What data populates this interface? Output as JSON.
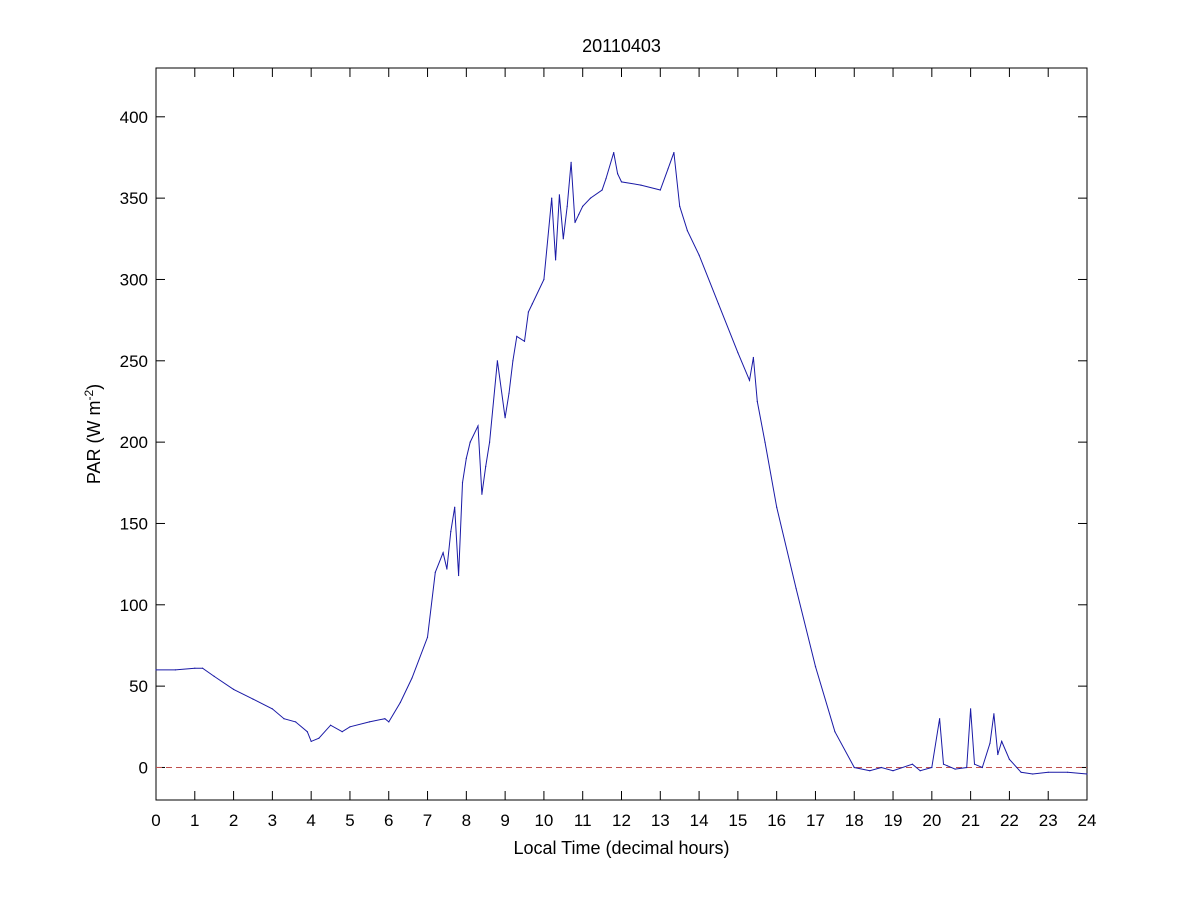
{
  "chart_data": {
    "type": "line",
    "title": "20110403",
    "xlabel": "Local Time (decimal hours)",
    "ylabel": "PAR (W m-2)",
    "ylabel_parts": {
      "main": "PAR (W m",
      "sup": "-2",
      "close": ")"
    },
    "xlim": [
      0,
      24
    ],
    "ylim": [
      -20,
      430
    ],
    "x_ticks": [
      0,
      1,
      2,
      3,
      4,
      5,
      6,
      7,
      8,
      9,
      10,
      11,
      12,
      13,
      14,
      15,
      16,
      17,
      18,
      19,
      20,
      21,
      22,
      23,
      24
    ],
    "x_tick_labels": [
      "0",
      "1",
      "2",
      "3",
      "4",
      "5",
      "6",
      "7",
      "8",
      "9",
      "10",
      "11",
      "12",
      "13",
      "14",
      "15",
      "16",
      "17",
      "18",
      "19",
      "20",
      "21",
      "22",
      "23",
      "24"
    ],
    "y_ticks": [
      0,
      50,
      100,
      150,
      200,
      250,
      300,
      350,
      400
    ],
    "y_tick_labels": [
      "0",
      "50",
      "100",
      "150",
      "200",
      "250",
      "300",
      "350",
      "400"
    ],
    "grid": false,
    "legend": "none",
    "reference_line": {
      "y": 0,
      "color": "#c0504d",
      "style": "dashed"
    },
    "series": [
      {
        "color": "#1a1aa6",
        "x": [
          0,
          0.5,
          1.0,
          1.2,
          1.5,
          2.0,
          2.5,
          3.0,
          3.3,
          3.6,
          3.9,
          4.0,
          4.2,
          4.5,
          4.8,
          5.0,
          5.5,
          5.9,
          6.0,
          6.3,
          6.6,
          7.0,
          7.2,
          7.4,
          7.5,
          7.6,
          7.7,
          7.8,
          7.9,
          8.0,
          8.1,
          8.3,
          8.4,
          8.5,
          8.6,
          8.8,
          9.0,
          9.1,
          9.2,
          9.3,
          9.5,
          9.6,
          9.7,
          10.0,
          10.2,
          10.3,
          10.4,
          10.5,
          10.6,
          10.7,
          10.8,
          10.9,
          11.0,
          11.2,
          11.5,
          11.6,
          11.8,
          11.9,
          12.0,
          12.5,
          13.0,
          13.2,
          13.35,
          13.5,
          13.7,
          14.0,
          14.5,
          15.0,
          15.3,
          15.4,
          15.5,
          15.7,
          16.0,
          16.5,
          17.0,
          17.5,
          18.0,
          18.4,
          18.7,
          19.0,
          19.5,
          19.7,
          20.0,
          20.2,
          20.3,
          20.4,
          20.6,
          20.9,
          21.0,
          21.1,
          21.3,
          21.5,
          21.6,
          21.7,
          21.8,
          22.0,
          22.3,
          22.6,
          23.0,
          23.5,
          24.0
        ],
        "values": [
          60,
          60,
          61,
          61,
          56,
          48,
          42,
          36,
          30,
          28,
          22,
          16,
          18,
          26,
          22,
          25,
          28,
          30,
          28,
          40,
          55,
          80,
          120,
          132,
          122,
          145,
          160,
          118,
          175,
          190,
          200,
          210,
          168,
          185,
          200,
          250,
          215,
          230,
          250,
          265,
          262,
          280,
          285,
          300,
          350,
          312,
          352,
          325,
          345,
          372,
          335,
          340,
          345,
          350,
          355,
          362,
          378,
          365,
          360,
          358,
          355,
          368,
          378,
          345,
          330,
          315,
          285,
          255,
          238,
          252,
          225,
          200,
          160,
          110,
          62,
          22,
          0,
          -2,
          0,
          -2,
          2,
          -2,
          0,
          30,
          2,
          1,
          -1,
          0,
          36,
          2,
          0,
          15,
          33,
          8,
          16,
          5,
          -3,
          -4,
          -3,
          -3,
          -4
        ]
      }
    ]
  }
}
